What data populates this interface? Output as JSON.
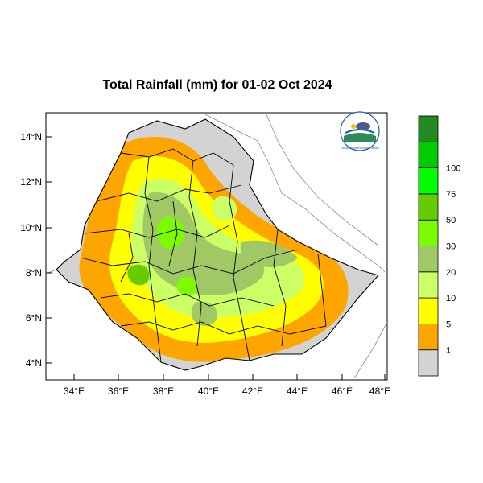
{
  "title": "Total Rainfall (mm) for 01-02 Oct 2024",
  "y_ticks": [
    "14°N",
    "12°N",
    "10°N",
    "8°N",
    "6°N",
    "4°N"
  ],
  "x_ticks": [
    "34°E",
    "36°E",
    "38°E",
    "40°E",
    "42°E",
    "44°E",
    "46°E",
    "48°E"
  ],
  "colorbar": {
    "colors": [
      "#d3d3d3",
      "#ffa500",
      "#ffff00",
      "#ccff66",
      "#a0c864",
      "#7cfc00",
      "#66cc00",
      "#00ff00",
      "#00cc00",
      "#228b22"
    ],
    "labels": [
      "1",
      "5",
      "10",
      "20",
      "30",
      "50",
      "75",
      "100"
    ]
  },
  "logo": {
    "label": "Ethiopian Meteorology Institute"
  }
}
